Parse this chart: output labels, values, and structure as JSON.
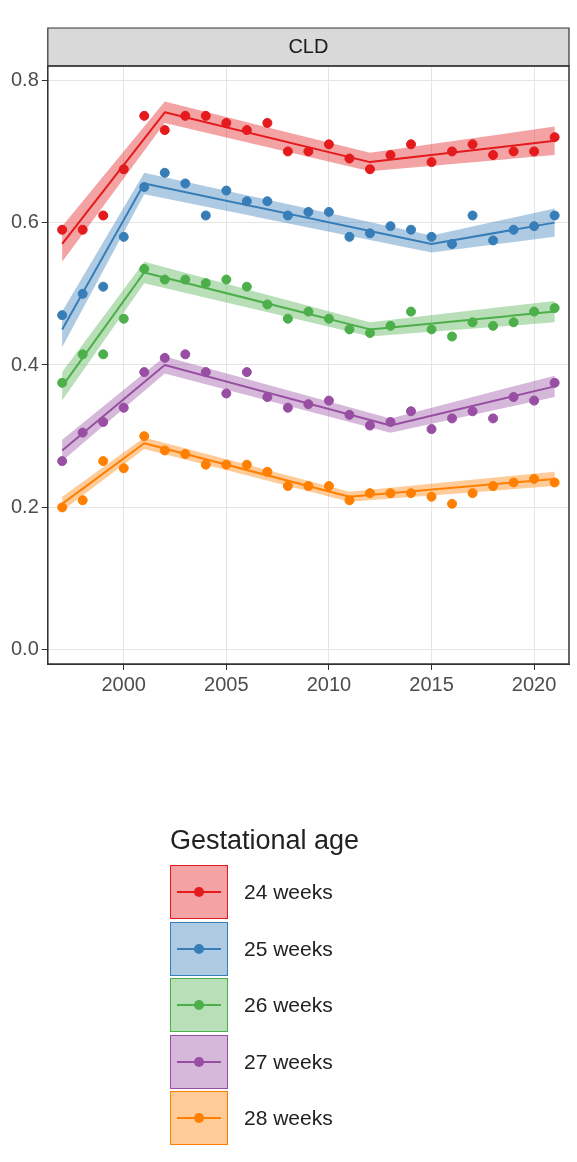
{
  "chart_data": {
    "type": "scatter",
    "title": "CLD",
    "legend_title": "Gestational age",
    "legend": "bottom",
    "grid": true,
    "marker": "circle",
    "x": [
      1997,
      1998,
      1999,
      2000,
      2001,
      2002,
      2003,
      2004,
      2005,
      2006,
      2007,
      2008,
      2009,
      2010,
      2011,
      2012,
      2013,
      2014,
      2015,
      2016,
      2017,
      2018,
      2019,
      2020,
      2021
    ],
    "xlim": [
      1996.3,
      2021.7
    ],
    "xticks": [
      2000,
      2005,
      2010,
      2015,
      2020
    ],
    "ylim": [
      -0.02,
      0.82
    ],
    "yticks": [
      {
        "value": 0,
        "label": "0.0"
      },
      0.2,
      0.4,
      0.6,
      0.8
    ],
    "series": [
      {
        "name": "24 weeks",
        "type": "scatter",
        "color": "#e41a1c",
        "values": [
          0.59,
          0.59,
          0.61,
          0.675,
          0.75,
          0.73,
          0.75,
          0.75,
          0.74,
          0.73,
          0.74,
          0.7,
          0.7,
          0.71,
          0.69,
          0.675,
          0.695,
          0.71,
          0.685,
          0.7,
          0.71,
          0.695,
          0.7,
          0.7,
          0.72
        ]
      },
      {
        "type": "line",
        "marker": "none",
        "color": "#e41a1c",
        "x": [
          1997,
          2002,
          2012,
          2021
        ],
        "values": [
          0.57,
          0.755,
          0.685,
          0.715
        ],
        "lower": [
          0.545,
          0.74,
          0.672,
          0.695
        ],
        "upper": [
          0.595,
          0.77,
          0.698,
          0.735
        ]
      },
      {
        "name": "25 weeks",
        "type": "scatter",
        "color": "#377eb8",
        "values": [
          0.47,
          0.5,
          0.51,
          0.58,
          0.65,
          0.67,
          0.655,
          0.61,
          0.645,
          0.63,
          0.63,
          0.61,
          0.615,
          0.615,
          0.58,
          0.585,
          0.595,
          0.59,
          0.58,
          0.57,
          0.61,
          0.575,
          0.59,
          0.595,
          0.61
        ]
      },
      {
        "type": "line",
        "marker": "none",
        "color": "#377eb8",
        "x": [
          1997,
          2001,
          2015,
          2021
        ],
        "values": [
          0.45,
          0.655,
          0.57,
          0.6
        ],
        "lower": [
          0.425,
          0.64,
          0.558,
          0.58
        ],
        "upper": [
          0.475,
          0.67,
          0.582,
          0.62
        ]
      },
      {
        "name": "26 weeks",
        "type": "scatter",
        "color": "#4daf4a",
        "values": [
          0.375,
          0.415,
          0.415,
          0.465,
          0.535,
          0.52,
          0.52,
          0.515,
          0.52,
          0.51,
          0.485,
          0.465,
          0.475,
          0.465,
          0.45,
          0.445,
          0.455,
          0.475,
          0.45,
          0.44,
          0.46,
          0.455,
          0.46,
          0.475,
          0.48
        ]
      },
      {
        "type": "line",
        "marker": "none",
        "color": "#4daf4a",
        "x": [
          1997,
          2001,
          2012,
          2021
        ],
        "values": [
          0.37,
          0.53,
          0.45,
          0.475
        ],
        "lower": [
          0.35,
          0.515,
          0.44,
          0.46
        ],
        "upper": [
          0.39,
          0.545,
          0.46,
          0.49
        ]
      },
      {
        "name": "27 weeks",
        "type": "scatter",
        "color": "#984ea3",
        "values": [
          0.265,
          0.305,
          0.32,
          0.34,
          0.39,
          0.41,
          0.415,
          0.39,
          0.36,
          0.39,
          0.355,
          0.34,
          0.345,
          0.35,
          0.33,
          0.315,
          0.32,
          0.335,
          0.31,
          0.325,
          0.335,
          0.325,
          0.355,
          0.35,
          0.375
        ]
      },
      {
        "type": "line",
        "marker": "none",
        "color": "#984ea3",
        "x": [
          1997,
          2002,
          2013,
          2021
        ],
        "values": [
          0.28,
          0.4,
          0.315,
          0.37
        ],
        "lower": [
          0.265,
          0.388,
          0.305,
          0.355
        ],
        "upper": [
          0.295,
          0.412,
          0.325,
          0.385
        ]
      },
      {
        "name": "28 weeks",
        "type": "scatter",
        "color": "#ff7f00",
        "values": [
          0.2,
          0.21,
          0.265,
          0.255,
          0.3,
          0.28,
          0.275,
          0.26,
          0.26,
          0.26,
          0.25,
          0.23,
          0.23,
          0.23,
          0.21,
          0.22,
          0.22,
          0.22,
          0.215,
          0.205,
          0.22,
          0.23,
          0.235,
          0.24,
          0.235
        ]
      },
      {
        "type": "line",
        "marker": "none",
        "color": "#ff7f00",
        "x": [
          1997,
          2001,
          2011,
          2021
        ],
        "values": [
          0.205,
          0.29,
          0.215,
          0.24
        ],
        "lower": [
          0.195,
          0.282,
          0.208,
          0.23
        ],
        "upper": [
          0.215,
          0.298,
          0.222,
          0.25
        ]
      }
    ]
  }
}
